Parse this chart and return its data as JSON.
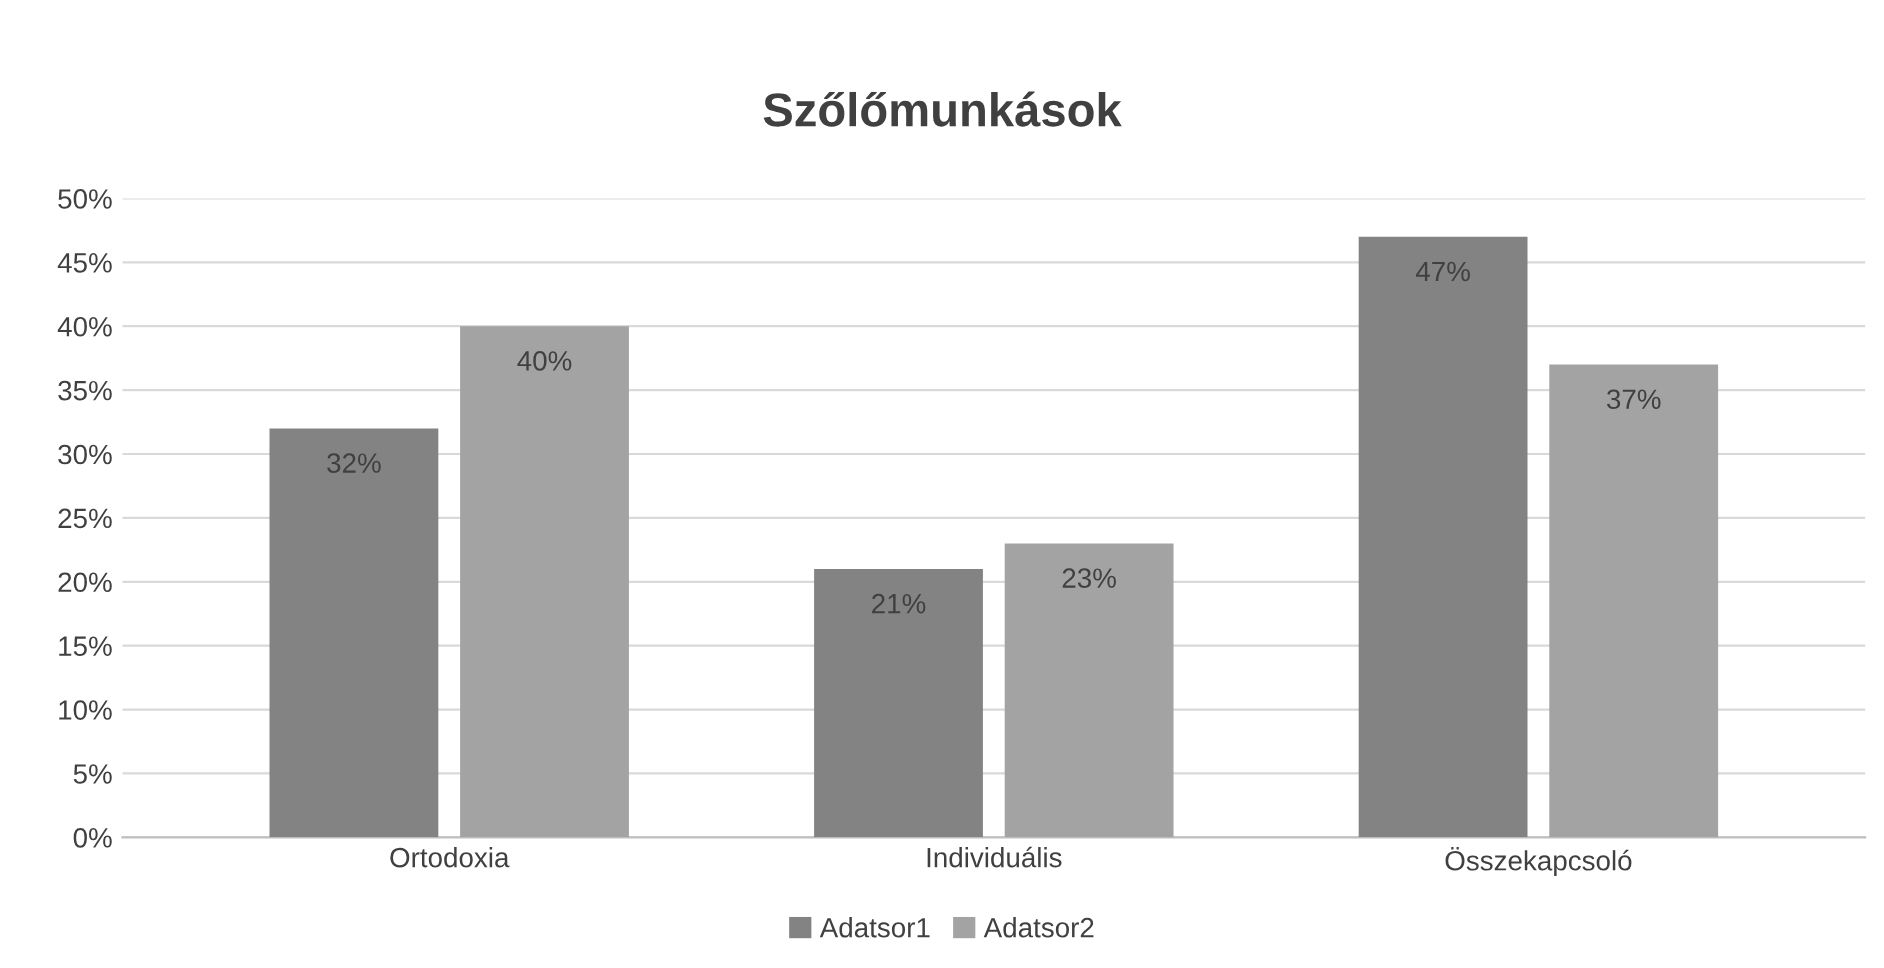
{
  "chart_data": {
    "type": "bar",
    "title": "Szőlőmunkások",
    "categories": [
      "Ortodoxia",
      "Individuális",
      "Összekapcsoló"
    ],
    "series": [
      {
        "name": "Adatsor1",
        "color": "#838383",
        "values": [
          32,
          21,
          47
        ],
        "value_labels": [
          "32%",
          "21%",
          "47%"
        ]
      },
      {
        "name": "Adatsor2",
        "color": "#a3a3a3",
        "values": [
          40,
          23,
          37
        ],
        "value_labels": [
          "40%",
          "23%",
          "37%"
        ]
      }
    ],
    "ylim": [
      0,
      50
    ],
    "yticks": [
      {
        "value": 0,
        "label": "0%"
      },
      {
        "value": 5,
        "label": "5%"
      },
      {
        "value": 10,
        "label": "10%"
      },
      {
        "value": 15,
        "label": "15%"
      },
      {
        "value": 20,
        "label": "20%"
      },
      {
        "value": 25,
        "label": "25%"
      },
      {
        "value": 30,
        "label": "30%"
      },
      {
        "value": 35,
        "label": "35%"
      },
      {
        "value": 40,
        "label": "40%"
      },
      {
        "value": 45,
        "label": "45%"
      },
      {
        "value": 50,
        "label": "50%"
      }
    ],
    "grid": "y",
    "legend": "bottom"
  }
}
